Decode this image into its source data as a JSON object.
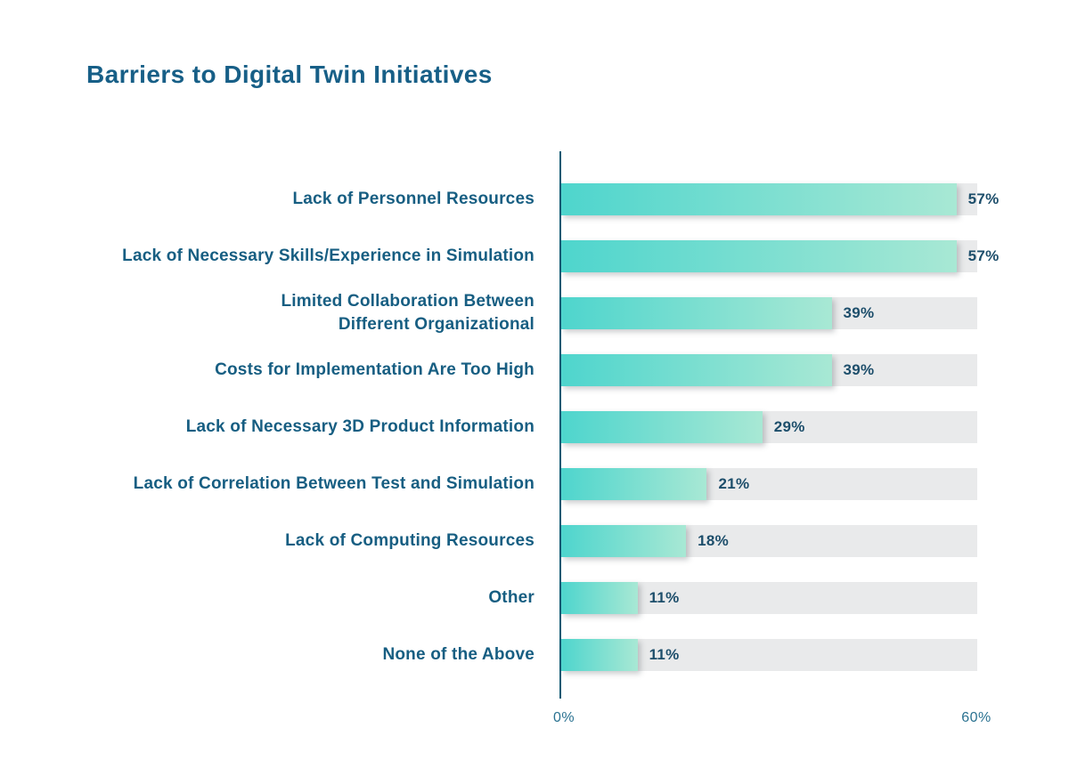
{
  "title": "Barriers to Digital Twin Initiatives",
  "chart_data": {
    "type": "bar",
    "orientation": "horizontal",
    "title": "Barriers to Digital Twin Initiatives",
    "categories": [
      "Lack of Personnel Resources",
      "Lack of Necessary Skills/Experience in Simulation",
      "Limited Collaboration Between\nDifferent Organizational",
      "Costs for Implementation Are Too High",
      "Lack of Necessary 3D Product Information",
      "Lack of Correlation Between Test and Simulation",
      "Lack of Computing Resources",
      "Other",
      "None of the Above"
    ],
    "values": [
      57,
      57,
      39,
      39,
      29,
      21,
      18,
      11,
      11
    ],
    "value_labels": [
      "57%",
      "57%",
      "39%",
      "39%",
      "29%",
      "21%",
      "18%",
      "11%",
      "11%"
    ],
    "xlim": [
      0,
      60
    ],
    "x_ticks": [
      "0%",
      "60%"
    ],
    "legend": "none",
    "grid": false,
    "colors": {
      "bar_gradient_start": "#4ed5cd",
      "bar_gradient_end": "#a8e8d4",
      "track": "#e9eaeb",
      "axis_line": "#0f5a74",
      "title_text": "#175f87",
      "category_text": "#175e82",
      "value_text": "#1d4e6b",
      "tick_text": "#2a7291"
    }
  }
}
